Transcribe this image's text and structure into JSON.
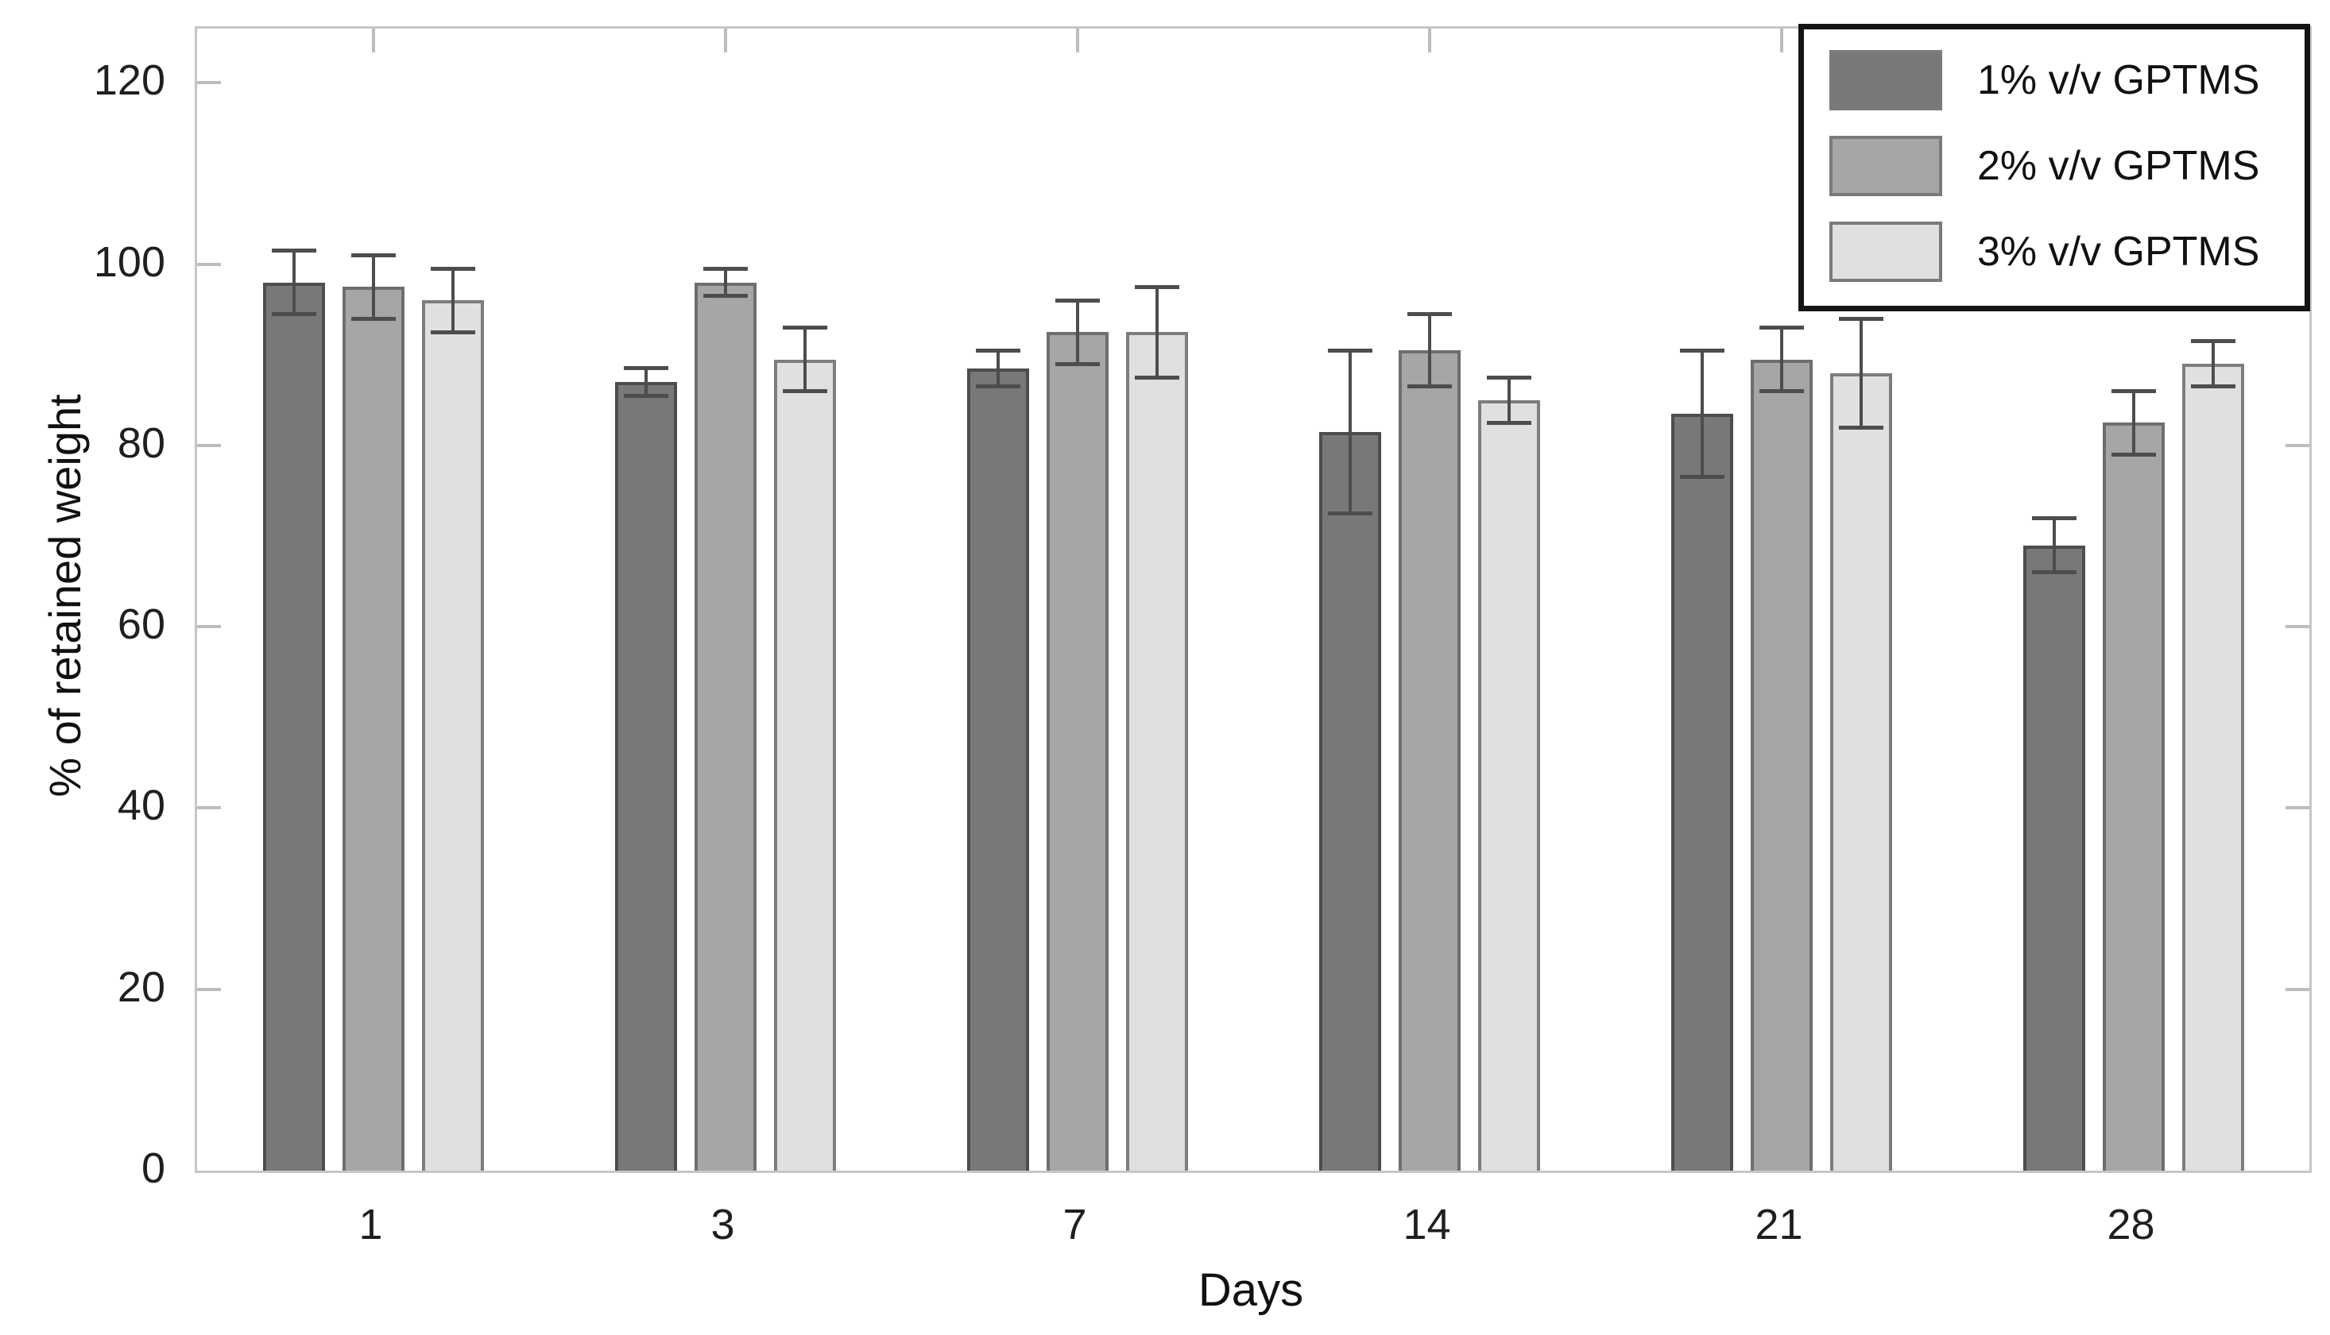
{
  "chart_data": {
    "type": "bar",
    "title": "",
    "xlabel": "Days",
    "ylabel": "% of retained weight",
    "categories": [
      "1",
      "3",
      "7",
      "14",
      "21",
      "28"
    ],
    "series": [
      {
        "name": "1% v/v GPTMS",
        "color": "#787878",
        "edge_color": "#4d4d4d",
        "values": [
          98,
          87,
          88.5,
          81.5,
          83.5,
          69
        ],
        "errors": [
          3.5,
          1.5,
          2,
          9,
          7,
          3
        ]
      },
      {
        "name": "2% v/v GPTMS",
        "color": "#a6a6a6",
        "edge_color": "#6e6e6e",
        "values": [
          97.5,
          98,
          92.5,
          90.5,
          89.5,
          82.5
        ],
        "errors": [
          3.5,
          1.5,
          3.5,
          4,
          3.5,
          3.5
        ]
      },
      {
        "name": "3% v/v GPTMS",
        "color": "#e0e0e0",
        "edge_color": "#7d7d7d",
        "values": [
          96,
          89.5,
          92.5,
          85,
          88,
          89
        ],
        "errors": [
          3.5,
          3.5,
          5,
          2.5,
          6,
          2.5
        ]
      }
    ],
    "yticks": [
      0,
      20,
      40,
      60,
      80,
      100,
      120
    ],
    "ylim": [
      0,
      126
    ],
    "grid": false,
    "legend_position": "top-right",
    "axis_color": "#c6c6c6",
    "tick_color": "#bdbdbd",
    "error_bar_color": "#4d4d4d",
    "background_color": "#ffffff"
  }
}
